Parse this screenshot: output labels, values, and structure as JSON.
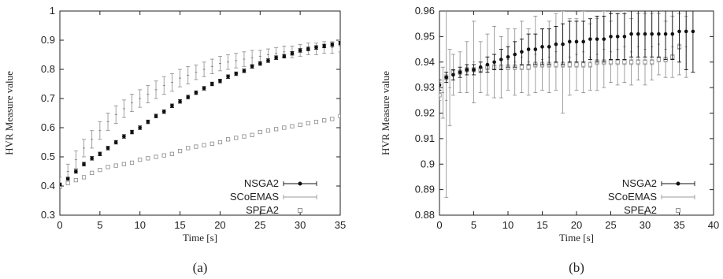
{
  "chart_data": [
    {
      "type": "line",
      "caption": "(a)",
      "xlabel": "Time [s]",
      "ylabel": "HVR Measure value",
      "xlim": [
        0,
        35
      ],
      "ylim": [
        0.3,
        1.0
      ],
      "xticks": [
        "0",
        "5",
        "10",
        "15",
        "20",
        "25",
        "30",
        "35"
      ],
      "yticks": [
        "0.3",
        "0.4",
        "0.5",
        "0.6",
        "0.7",
        "0.8",
        "0.9",
        "1"
      ],
      "grid": false,
      "legend_position": "bottom-right",
      "series": [
        {
          "name": "NSGA2",
          "marker": "filled-circle",
          "x": [
            0,
            1,
            2,
            3,
            4,
            5,
            6,
            7,
            8,
            9,
            10,
            11,
            12,
            13,
            14,
            15,
            16,
            17,
            18,
            19,
            20,
            21,
            22,
            23,
            24,
            25,
            26,
            27,
            28,
            29,
            30,
            31,
            32,
            33,
            34,
            35
          ],
          "y": [
            0.405,
            0.425,
            0.45,
            0.475,
            0.495,
            0.51,
            0.53,
            0.55,
            0.57,
            0.585,
            0.6,
            0.62,
            0.64,
            0.655,
            0.675,
            0.69,
            0.705,
            0.72,
            0.735,
            0.75,
            0.76,
            0.775,
            0.785,
            0.795,
            0.81,
            0.82,
            0.83,
            0.84,
            0.845,
            0.855,
            0.865,
            0.87,
            0.875,
            0.88,
            0.885,
            0.89
          ],
          "error": [
            0.005,
            0.005,
            0.006,
            0.006,
            0.006,
            0.006,
            0.006,
            0.006,
            0.006,
            0.006,
            0.006,
            0.006,
            0.006,
            0.006,
            0.006,
            0.006,
            0.006,
            0.006,
            0.006,
            0.006,
            0.006,
            0.006,
            0.006,
            0.006,
            0.006,
            0.006,
            0.006,
            0.006,
            0.006,
            0.006,
            0.006,
            0.006,
            0.006,
            0.006,
            0.006,
            0.006
          ]
        },
        {
          "name": "SCoEMAS",
          "marker": "errorbars-only",
          "x": [
            0,
            1,
            2,
            3,
            4,
            5,
            6,
            7,
            8,
            9,
            10,
            11,
            12,
            13,
            14,
            15,
            16,
            17,
            18,
            19,
            20,
            21,
            22,
            23,
            24,
            25,
            26,
            27,
            28,
            29,
            30,
            31,
            32,
            33,
            34,
            35
          ],
          "y": [
            0.41,
            0.45,
            0.49,
            0.53,
            0.56,
            0.59,
            0.62,
            0.645,
            0.665,
            0.685,
            0.7,
            0.715,
            0.73,
            0.745,
            0.755,
            0.77,
            0.78,
            0.79,
            0.8,
            0.81,
            0.82,
            0.825,
            0.83,
            0.835,
            0.84,
            0.845,
            0.85,
            0.855,
            0.86,
            0.86,
            0.865,
            0.87,
            0.87,
            0.875,
            0.875,
            0.88
          ],
          "error": [
            0.02,
            0.025,
            0.03,
            0.03,
            0.03,
            0.03,
            0.03,
            0.03,
            0.03,
            0.03,
            0.03,
            0.03,
            0.03,
            0.03,
            0.03,
            0.03,
            0.03,
            0.025,
            0.025,
            0.025,
            0.025,
            0.025,
            0.025,
            0.025,
            0.025,
            0.02,
            0.02,
            0.02,
            0.02,
            0.02,
            0.02,
            0.02,
            0.02,
            0.02,
            0.02,
            0.02
          ]
        },
        {
          "name": "SPEA2",
          "marker": "open-square",
          "x": [
            0,
            1,
            2,
            3,
            4,
            5,
            6,
            7,
            8,
            9,
            10,
            11,
            12,
            13,
            14,
            15,
            16,
            17,
            18,
            19,
            20,
            21,
            22,
            23,
            24,
            25,
            26,
            27,
            28,
            29,
            30,
            31,
            32,
            33,
            34,
            35
          ],
          "y": [
            0.4,
            0.41,
            0.42,
            0.43,
            0.445,
            0.455,
            0.465,
            0.47,
            0.475,
            0.48,
            0.49,
            0.495,
            0.5,
            0.505,
            0.51,
            0.52,
            0.53,
            0.535,
            0.54,
            0.545,
            0.55,
            0.56,
            0.565,
            0.57,
            0.575,
            0.585,
            0.59,
            0.595,
            0.6,
            0.605,
            0.61,
            0.615,
            0.62,
            0.625,
            0.63,
            0.64
          ],
          "error": [
            0.004,
            0.004,
            0.004,
            0.004,
            0.004,
            0.004,
            0.004,
            0.004,
            0.004,
            0.004,
            0.004,
            0.004,
            0.004,
            0.004,
            0.004,
            0.004,
            0.004,
            0.004,
            0.004,
            0.004,
            0.004,
            0.004,
            0.004,
            0.004,
            0.004,
            0.004,
            0.004,
            0.004,
            0.004,
            0.004,
            0.004,
            0.004,
            0.004,
            0.004,
            0.004,
            0.004
          ]
        }
      ]
    },
    {
      "type": "line",
      "caption": "(b)",
      "xlabel": "Time [s]",
      "ylabel": "HVR Measure value",
      "xlim": [
        0,
        40
      ],
      "ylim": [
        0.88,
        0.96
      ],
      "xticks": [
        "0",
        "5",
        "10",
        "15",
        "20",
        "25",
        "30",
        "35",
        "40"
      ],
      "yticks": [
        "0.88",
        "0.89",
        "0.9",
        "0.91",
        "0.92",
        "0.93",
        "0.94",
        "0.95",
        "0.96"
      ],
      "grid": false,
      "legend_position": "bottom-right",
      "series": [
        {
          "name": "NSGA2",
          "marker": "filled-circle",
          "x": [
            0,
            1,
            2,
            3,
            4,
            5,
            6,
            7,
            8,
            9,
            10,
            11,
            12,
            13,
            14,
            15,
            16,
            17,
            18,
            19,
            20,
            21,
            22,
            23,
            24,
            25,
            26,
            27,
            28,
            29,
            30,
            31,
            32,
            33,
            34,
            35,
            36,
            37
          ],
          "y": [
            0.931,
            0.934,
            0.935,
            0.936,
            0.937,
            0.937,
            0.938,
            0.939,
            0.94,
            0.941,
            0.942,
            0.943,
            0.944,
            0.945,
            0.945,
            0.946,
            0.946,
            0.947,
            0.947,
            0.948,
            0.948,
            0.948,
            0.949,
            0.949,
            0.949,
            0.95,
            0.95,
            0.95,
            0.951,
            0.951,
            0.951,
            0.951,
            0.951,
            0.951,
            0.951,
            0.952,
            0.952,
            0.952
          ],
          "error": [
            0.002,
            0.002,
            0.002,
            0.002,
            0.002,
            0.002,
            0.002,
            0.003,
            0.003,
            0.004,
            0.004,
            0.005,
            0.005,
            0.006,
            0.006,
            0.007,
            0.007,
            0.007,
            0.008,
            0.008,
            0.008,
            0.008,
            0.008,
            0.009,
            0.009,
            0.009,
            0.009,
            0.009,
            0.009,
            0.009,
            0.009,
            0.009,
            0.009,
            0.01,
            0.01,
            0.012,
            0.015,
            0.016
          ]
        },
        {
          "name": "SCoEMAS",
          "marker": "errorbars-only",
          "x": [
            0,
            0.5,
            1,
            1.5,
            2,
            3,
            4,
            5,
            6,
            7,
            8,
            9,
            10,
            11,
            12,
            13,
            14,
            15,
            16,
            17,
            18,
            19,
            20,
            21,
            22,
            23,
            24,
            25,
            26,
            27,
            28,
            29,
            30,
            31,
            32,
            33,
            34,
            35,
            36
          ],
          "y": [
            0.93,
            0.928,
            0.925,
            0.93,
            0.935,
            0.936,
            0.938,
            0.94,
            0.938,
            0.939,
            0.94,
            0.938,
            0.941,
            0.94,
            0.942,
            0.94,
            0.943,
            0.941,
            0.942,
            0.944,
            0.94,
            0.942,
            0.943,
            0.944,
            0.942,
            0.943,
            0.945,
            0.944,
            0.945,
            0.946,
            0.944,
            0.946,
            0.945,
            0.946,
            0.947,
            0.945,
            0.946,
            0.947,
            0.946
          ],
          "error": [
            0.002,
            0.01,
            0.038,
            0.015,
            0.008,
            0.008,
            0.01,
            0.016,
            0.01,
            0.012,
            0.014,
            0.012,
            0.012,
            0.013,
            0.014,
            0.013,
            0.015,
            0.012,
            0.014,
            0.015,
            0.02,
            0.015,
            0.014,
            0.016,
            0.013,
            0.014,
            0.015,
            0.012,
            0.014,
            0.014,
            0.013,
            0.013,
            0.014,
            0.013,
            0.012,
            0.011,
            0.012,
            0.012,
            0.012
          ]
        },
        {
          "name": "SPEA2",
          "marker": "open-square",
          "x": [
            0,
            1,
            2,
            3,
            4,
            5,
            6,
            7,
            8,
            9,
            10,
            11,
            12,
            13,
            14,
            15,
            16,
            17,
            18,
            19,
            20,
            21,
            22,
            23,
            24,
            25,
            26,
            27,
            28,
            29,
            30,
            31,
            32,
            33,
            34,
            35
          ],
          "y": [
            0.927,
            0.934,
            0.936,
            0.936,
            0.937,
            0.937,
            0.937,
            0.938,
            0.938,
            0.938,
            0.938,
            0.938,
            0.938,
            0.938,
            0.939,
            0.939,
            0.939,
            0.939,
            0.939,
            0.939,
            0.939,
            0.939,
            0.939,
            0.94,
            0.94,
            0.94,
            0.94,
            0.94,
            0.94,
            0.94,
            0.94,
            0.94,
            0.941,
            0.941,
            0.942,
            0.946
          ],
          "error": [
            0.002,
            0.001,
            0.001,
            0.001,
            0.001,
            0.001,
            0.001,
            0.001,
            0.001,
            0.001,
            0.001,
            0.001,
            0.001,
            0.001,
            0.001,
            0.001,
            0.001,
            0.001,
            0.001,
            0.001,
            0.001,
            0.001,
            0.001,
            0.001,
            0.001,
            0.001,
            0.001,
            0.001,
            0.001,
            0.001,
            0.001,
            0.001,
            0.001,
            0.001,
            0.001,
            0.001
          ]
        }
      ]
    }
  ]
}
